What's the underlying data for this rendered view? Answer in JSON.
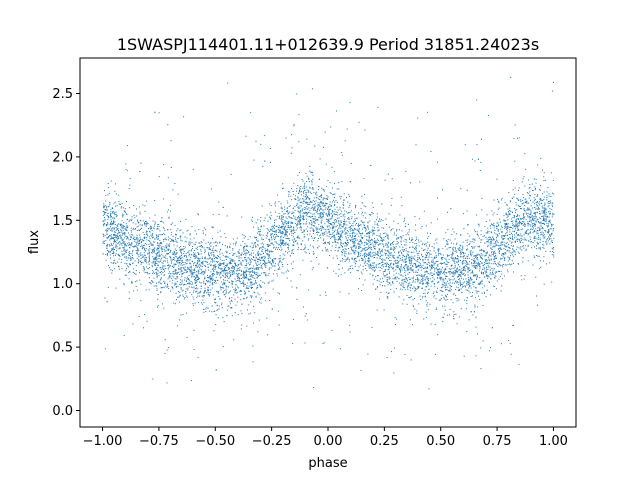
{
  "chart_data": {
    "type": "scatter",
    "title": "1SWASPJ114401.11+012639.9 Period 31851.24023s",
    "xlabel": "phase",
    "ylabel": "flux",
    "xlim": [
      -1.1,
      1.1
    ],
    "ylim": [
      -0.13,
      2.78
    ],
    "x_ticks": [
      -1.0,
      -0.75,
      -0.5,
      -0.25,
      0.0,
      0.25,
      0.5,
      0.75,
      1.0
    ],
    "x_tick_labels": [
      "−1.00",
      "−0.75",
      "−0.50",
      "−0.25",
      "0.00",
      "0.25",
      "0.50",
      "0.75",
      "1.00"
    ],
    "y_ticks": [
      0.0,
      0.5,
      1.0,
      1.5,
      2.0,
      2.5
    ],
    "y_tick_labels": [
      "0.0",
      "0.5",
      "1.0",
      "1.5",
      "2.0",
      "2.5"
    ],
    "grid": false,
    "marker_color": "#1f77b4",
    "light_curve_profile": {
      "phase": [
        -1.0,
        -0.9,
        -0.8,
        -0.7,
        -0.6,
        -0.5,
        -0.4,
        -0.3,
        -0.2,
        -0.1,
        0.0,
        0.1,
        0.2,
        0.3,
        0.4,
        0.5,
        0.6,
        0.7,
        0.8,
        0.9,
        1.0
      ],
      "flux": [
        1.45,
        1.35,
        1.27,
        1.2,
        1.13,
        1.08,
        1.09,
        1.18,
        1.4,
        1.6,
        1.48,
        1.35,
        1.27,
        1.2,
        1.13,
        1.08,
        1.09,
        1.18,
        1.4,
        1.55,
        1.48
      ]
    }
  }
}
